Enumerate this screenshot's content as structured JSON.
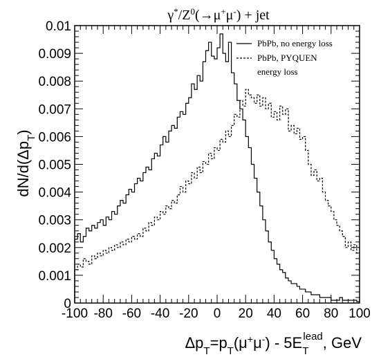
{
  "chart_data": {
    "type": "line",
    "title_parts": {
      "gamma": "γ",
      "star": "*",
      "slash_z": "/Z",
      "zero": "0",
      "open": "(→μ",
      "plus": "+",
      "mu": "μ",
      "minus": "-",
      "close": ") + jet"
    },
    "ylabel_parts": {
      "pre": "dN/d(Δp",
      "sub": "T",
      "post": ")"
    },
    "xlabel_parts": {
      "dp": "Δp",
      "sub_t1": "T",
      "eq": "=p",
      "sub_t2": "T",
      "open": "(μ",
      "plus": "+",
      "mu": "μ",
      "minus": "-",
      "close": ") - 5E",
      "sub_t3": "T",
      "sup_lead": "lead",
      "gev": ", GeV"
    },
    "xlim": [
      -100,
      100
    ],
    "ylim": [
      0,
      0.01
    ],
    "xticks": [
      -100,
      -80,
      -60,
      -40,
      -20,
      0,
      20,
      40,
      60,
      80,
      100
    ],
    "xtick_labels": [
      "-100",
      "-80",
      "-60",
      "-40",
      "-20",
      "0",
      "20",
      "40",
      "60",
      "80",
      "100"
    ],
    "yticks": [
      0,
      0.001,
      0.002,
      0.003,
      0.004,
      0.005,
      0.006,
      0.007,
      0.008,
      0.009,
      0.01
    ],
    "ytick_labels": [
      "0",
      "0.001",
      "0.002",
      "0.003",
      "0.004",
      "0.005",
      "0.006",
      "0.007",
      "0.008",
      "0.009",
      "0.01"
    ],
    "grid": false,
    "legend_position": "top-right",
    "bin_edges": [
      -100,
      -98,
      -96,
      -94,
      -92,
      -90,
      -88,
      -86,
      -84,
      -82,
      -80,
      -78,
      -76,
      -74,
      -72,
      -70,
      -68,
      -66,
      -64,
      -62,
      -60,
      -58,
      -56,
      -54,
      -52,
      -50,
      -48,
      -46,
      -44,
      -42,
      -40,
      -38,
      -36,
      -34,
      -32,
      -30,
      -28,
      -26,
      -24,
      -22,
      -20,
      -18,
      -16,
      -14,
      -12,
      -10,
      -8,
      -6,
      -4,
      -2,
      0,
      2,
      4,
      6,
      8,
      10,
      12,
      14,
      16,
      18,
      20,
      22,
      24,
      26,
      28,
      30,
      32,
      34,
      36,
      38,
      40,
      42,
      44,
      46,
      48,
      50,
      52,
      54,
      56,
      58,
      60,
      62,
      64,
      66,
      68,
      70,
      72,
      74,
      76,
      78,
      80,
      82,
      84,
      86,
      88,
      90,
      92,
      94,
      96,
      98,
      100
    ],
    "series": [
      {
        "name": "PbPb, no energy loss",
        "style": "solid",
        "color": "#000000",
        "values": [
          0.0023,
          0.0025,
          0.0022,
          0.0024,
          0.0027,
          0.0026,
          0.0028,
          0.0027,
          0.0029,
          0.003,
          0.0028,
          0.0031,
          0.003,
          0.0033,
          0.0032,
          0.0035,
          0.0037,
          0.0036,
          0.0039,
          0.0041,
          0.004,
          0.0043,
          0.0045,
          0.0044,
          0.0047,
          0.0049,
          0.0048,
          0.0052,
          0.0054,
          0.0053,
          0.0057,
          0.006,
          0.0058,
          0.0062,
          0.0064,
          0.0063,
          0.0067,
          0.0069,
          0.0068,
          0.0072,
          0.0074,
          0.0079,
          0.0077,
          0.0082,
          0.008,
          0.0087,
          0.0091,
          0.0094,
          0.0089,
          0.0088,
          0.0092,
          0.0097,
          0.009,
          0.0087,
          0.0094,
          0.0083,
          0.0079,
          0.0073,
          0.007,
          0.0066,
          0.006,
          0.0056,
          0.005,
          0.0045,
          0.004,
          0.0035,
          0.003,
          0.0026,
          0.0022,
          0.0019,
          0.0016,
          0.0014,
          0.0012,
          0.0011,
          0.0009,
          0.0008,
          0.0007,
          0.0007,
          0.0006,
          0.0005,
          0.0005,
          0.0004,
          0.0004,
          0.0003,
          0.0003,
          0.0003,
          0.0002,
          0.0002,
          0.0002,
          0.0002,
          0.0001,
          0.0001,
          0.0001,
          0.0002,
          0.0001,
          0.0001,
          0.0001,
          0.0001,
          0.0001,
          5e-05
        ]
      },
      {
        "name": "PbPb, PYQUEN energy loss",
        "style": "dashed",
        "color": "#000000",
        "values": [
          0.0012,
          0.0014,
          0.0013,
          0.0016,
          0.0015,
          0.0014,
          0.0017,
          0.0016,
          0.0018,
          0.0017,
          0.0019,
          0.0018,
          0.002,
          0.0019,
          0.0021,
          0.002,
          0.0022,
          0.0021,
          0.0023,
          0.0022,
          0.0024,
          0.0023,
          0.0025,
          0.0024,
          0.0027,
          0.0026,
          0.0029,
          0.0028,
          0.0031,
          0.003,
          0.0033,
          0.0032,
          0.0035,
          0.0034,
          0.0037,
          0.0036,
          0.0039,
          0.0042,
          0.004,
          0.0044,
          0.0043,
          0.0047,
          0.0045,
          0.0049,
          0.0047,
          0.0051,
          0.005,
          0.0054,
          0.0052,
          0.0056,
          0.0055,
          0.0059,
          0.0058,
          0.0062,
          0.006,
          0.0064,
          0.0068,
          0.0067,
          0.0073,
          0.0071,
          0.0077,
          0.0075,
          0.0074,
          0.0072,
          0.0075,
          0.0071,
          0.0074,
          0.007,
          0.0072,
          0.0067,
          0.0069,
          0.0066,
          0.0071,
          0.0068,
          0.007,
          0.0062,
          0.0064,
          0.0061,
          0.0063,
          0.0059,
          0.006,
          0.0055,
          0.005,
          0.0046,
          0.0048,
          0.0044,
          0.0045,
          0.004,
          0.0037,
          0.0035,
          0.0033,
          0.003,
          0.0028,
          0.0026,
          0.0024,
          0.002,
          0.0022,
          0.0019,
          0.0021,
          0.0018
        ]
      }
    ]
  }
}
